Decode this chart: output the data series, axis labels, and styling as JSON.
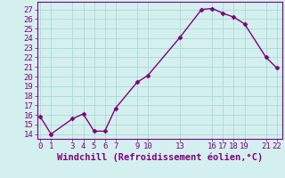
{
  "x": [
    0,
    1,
    3,
    4,
    5,
    6,
    7,
    9,
    10,
    13,
    15,
    16,
    17,
    18,
    19,
    21,
    22
  ],
  "y": [
    15.8,
    14.0,
    15.6,
    16.1,
    14.3,
    14.3,
    16.7,
    19.4,
    20.1,
    24.1,
    27.0,
    27.1,
    26.6,
    26.2,
    25.5,
    22.0,
    20.9
  ],
  "xticks": [
    0,
    1,
    3,
    4,
    5,
    6,
    7,
    9,
    10,
    13,
    16,
    17,
    18,
    19,
    21,
    22
  ],
  "xtick_labels": [
    "0",
    "1",
    "3",
    "4",
    "5",
    "6",
    "7",
    "9",
    "10",
    "13",
    "16",
    "17",
    "18",
    "19",
    "21",
    "22"
  ],
  "yticks": [
    14,
    15,
    16,
    17,
    18,
    19,
    20,
    21,
    22,
    23,
    24,
    25,
    26,
    27
  ],
  "ylim": [
    13.5,
    27.8
  ],
  "xlim": [
    -0.3,
    22.5
  ],
  "line_color": "#800080",
  "marker": "D",
  "marker_size": 2.5,
  "bg_color": "#d4f0ee",
  "grid_color": "#aadad6",
  "xlabel": "Windchill (Refroidissement éolien,°C)",
  "xlabel_fontsize": 7.5,
  "tick_fontsize": 6.5,
  "line_width": 1.0,
  "spine_color": "#800080"
}
